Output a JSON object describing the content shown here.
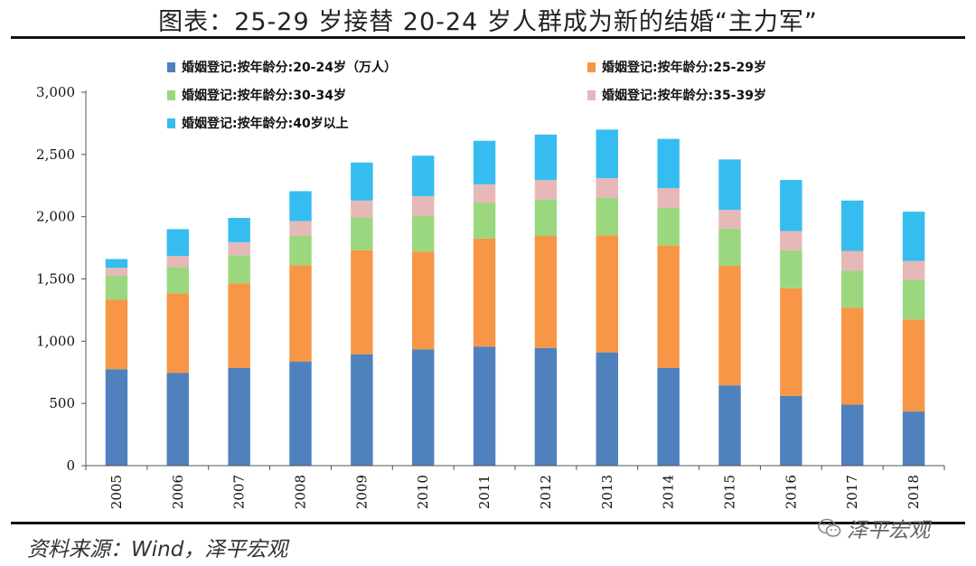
{
  "title": "图表：25-29 岁接替 20-24 岁人群成为新的结婚“主力军”",
  "source": "资料来源：Wind，泽平宏观",
  "watermark": "泽平宏观",
  "watermark_icon": "wechat-icon",
  "chart_data": {
    "type": "bar",
    "stacked": true,
    "categories": [
      "2005",
      "2006",
      "2007",
      "2008",
      "2009",
      "2010",
      "2011",
      "2012",
      "2013",
      "2014",
      "2015",
      "2016",
      "2017",
      "2018"
    ],
    "series": [
      {
        "name": "婚姻登记:按年龄分:20-24岁（万人）",
        "color": "#4f81bd",
        "values": [
          775,
          745,
          785,
          835,
          895,
          935,
          955,
          945,
          910,
          785,
          645,
          560,
          490,
          435
        ]
      },
      {
        "name": "婚姻登记:按年龄分:25-29岁",
        "color": "#f79646",
        "values": [
          560,
          640,
          680,
          775,
          835,
          785,
          870,
          900,
          940,
          985,
          960,
          865,
          780,
          740
        ]
      },
      {
        "name": "婚姻登记:按年龄分:30-34岁",
        "color": "#9bd77f",
        "values": [
          190,
          210,
          225,
          235,
          265,
          285,
          285,
          295,
          300,
          300,
          300,
          305,
          295,
          315
        ]
      },
      {
        "name": "婚姻登记:按年龄分:35-39岁",
        "color": "#e6b9b8",
        "values": [
          65,
          90,
          105,
          120,
          135,
          160,
          150,
          155,
          160,
          160,
          150,
          155,
          160,
          155
        ]
      },
      {
        "name": "婚姻登记:按年龄分:40岁以上",
        "color": "#35bdf0",
        "values": [
          70,
          215,
          195,
          240,
          305,
          325,
          350,
          365,
          390,
          395,
          405,
          410,
          405,
          395
        ]
      }
    ],
    "ylim": [
      0,
      3000
    ],
    "yticks": [
      0,
      500,
      1000,
      1500,
      2000,
      2500,
      3000
    ],
    "ytick_labels": [
      "0",
      "500",
      "1,000",
      "1,500",
      "2,000",
      "2,500",
      "3,000"
    ],
    "legend_position": "top",
    "grid": false
  }
}
